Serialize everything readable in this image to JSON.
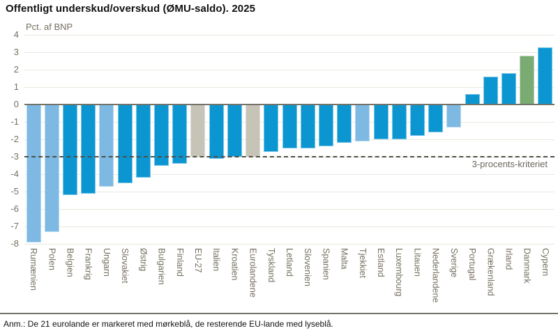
{
  "header": {
    "title": "Offentligt underskud/overskud (ØMU-saldo). 2025"
  },
  "chart_data": {
    "type": "bar",
    "title": "Offentligt underskud/overskud (ØMU-saldo). 2025",
    "xlabel": "",
    "ylabel": "Pct. af BNP",
    "ylim": [
      -8,
      4
    ],
    "yticks": [
      4,
      3,
      2,
      1,
      0,
      -1,
      -2,
      -3,
      -4,
      -5,
      -6,
      -7,
      -8
    ],
    "grid": true,
    "legend_position": "none",
    "reference_line": {
      "value": -3,
      "label": "3-procents-kriteriet"
    },
    "categories": [
      "Rumænien",
      "Polen",
      "Belgien",
      "Frankrig",
      "Ungarn",
      "Slovakiet",
      "Østrig",
      "Bulgarien",
      "Finland",
      "EU-27",
      "Italien",
      "Kroatien",
      "Eurolandene",
      "Tyskland",
      "Letland",
      "Slovenien",
      "Spanien",
      "Malta",
      "Tjekkiet",
      "Estland",
      "Luxembourg",
      "Litauen",
      "Nederlandene",
      "Sverige",
      "Portugal",
      "Grækenland",
      "Irland",
      "Danmark",
      "Cypern"
    ],
    "values": [
      -7.9,
      -7.3,
      -5.2,
      -5.1,
      -4.7,
      -4.5,
      -4.2,
      -3.5,
      -3.4,
      -3.0,
      -3.1,
      -3.0,
      -3.0,
      -2.7,
      -2.5,
      -2.5,
      -2.4,
      -2.2,
      -2.1,
      -2.0,
      -2.0,
      -1.8,
      -1.6,
      -1.3,
      0.6,
      1.6,
      1.8,
      2.8,
      3.3
    ],
    "groups": [
      "eu",
      "eu",
      "euro",
      "euro",
      "eu",
      "euro",
      "euro",
      "euro",
      "euro",
      "aggregate",
      "euro",
      "euro",
      "aggregate",
      "euro",
      "euro",
      "euro",
      "euro",
      "euro",
      "eu",
      "euro",
      "euro",
      "euro",
      "euro",
      "eu",
      "euro",
      "euro",
      "euro",
      "denmark",
      "euro"
    ],
    "colors": {
      "euro": "#0b96d2",
      "eu": "#7db9e3",
      "aggregate": "#c6c3b7",
      "denmark": "#7aab73"
    }
  },
  "footer": {
    "note": "Anm.: De 21 eurolande er markeret med mørkeblå, de resterende EU-lande med lyseblå."
  }
}
